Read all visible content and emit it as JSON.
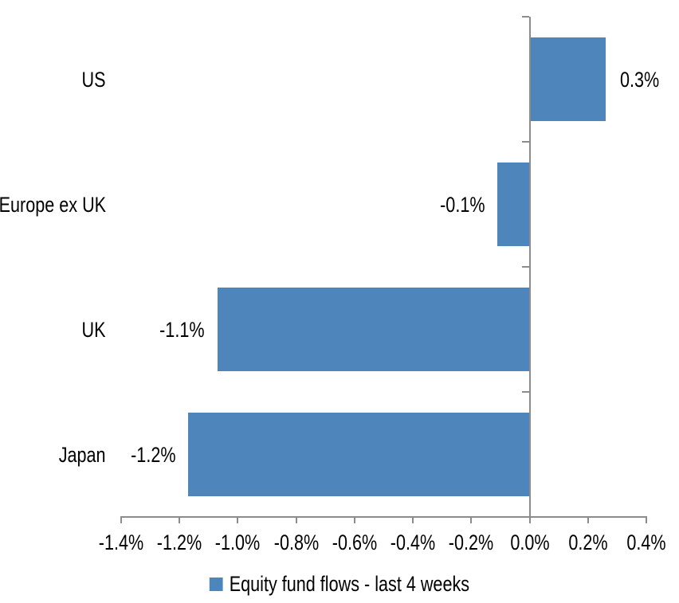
{
  "chart_data": {
    "type": "bar",
    "orientation": "horizontal",
    "title": "",
    "xlabel": "",
    "ylabel": "",
    "categories": [
      "US",
      "Europe ex UK",
      "UK",
      "Japan"
    ],
    "series": [
      {
        "name": "Equity fund flows - last 4 weeks",
        "values": [
          0.26,
          -0.11,
          -1.07,
          -1.17
        ],
        "data_labels": [
          "0.3%",
          "-0.1%",
          "-1.1%",
          "-1.2%"
        ]
      }
    ],
    "xlim": [
      -1.4,
      0.4
    ],
    "x_ticks": [
      -1.4,
      -1.2,
      -1.0,
      -0.8,
      -0.6,
      -0.4,
      -0.2,
      0.0,
      0.2,
      0.4
    ],
    "x_tick_labels": [
      "-1.4%",
      "-1.2%",
      "-1.0%",
      "-0.8%",
      "-0.6%",
      "-0.4%",
      "-0.2%",
      "0.0%",
      "0.2%",
      "0.4%"
    ],
    "grid": false,
    "legend_position": "bottom",
    "colors": {
      "bar": "#4E86BC",
      "axis": "#8C8C8C",
      "text": "#000000",
      "background": "#FFFFFF"
    }
  }
}
